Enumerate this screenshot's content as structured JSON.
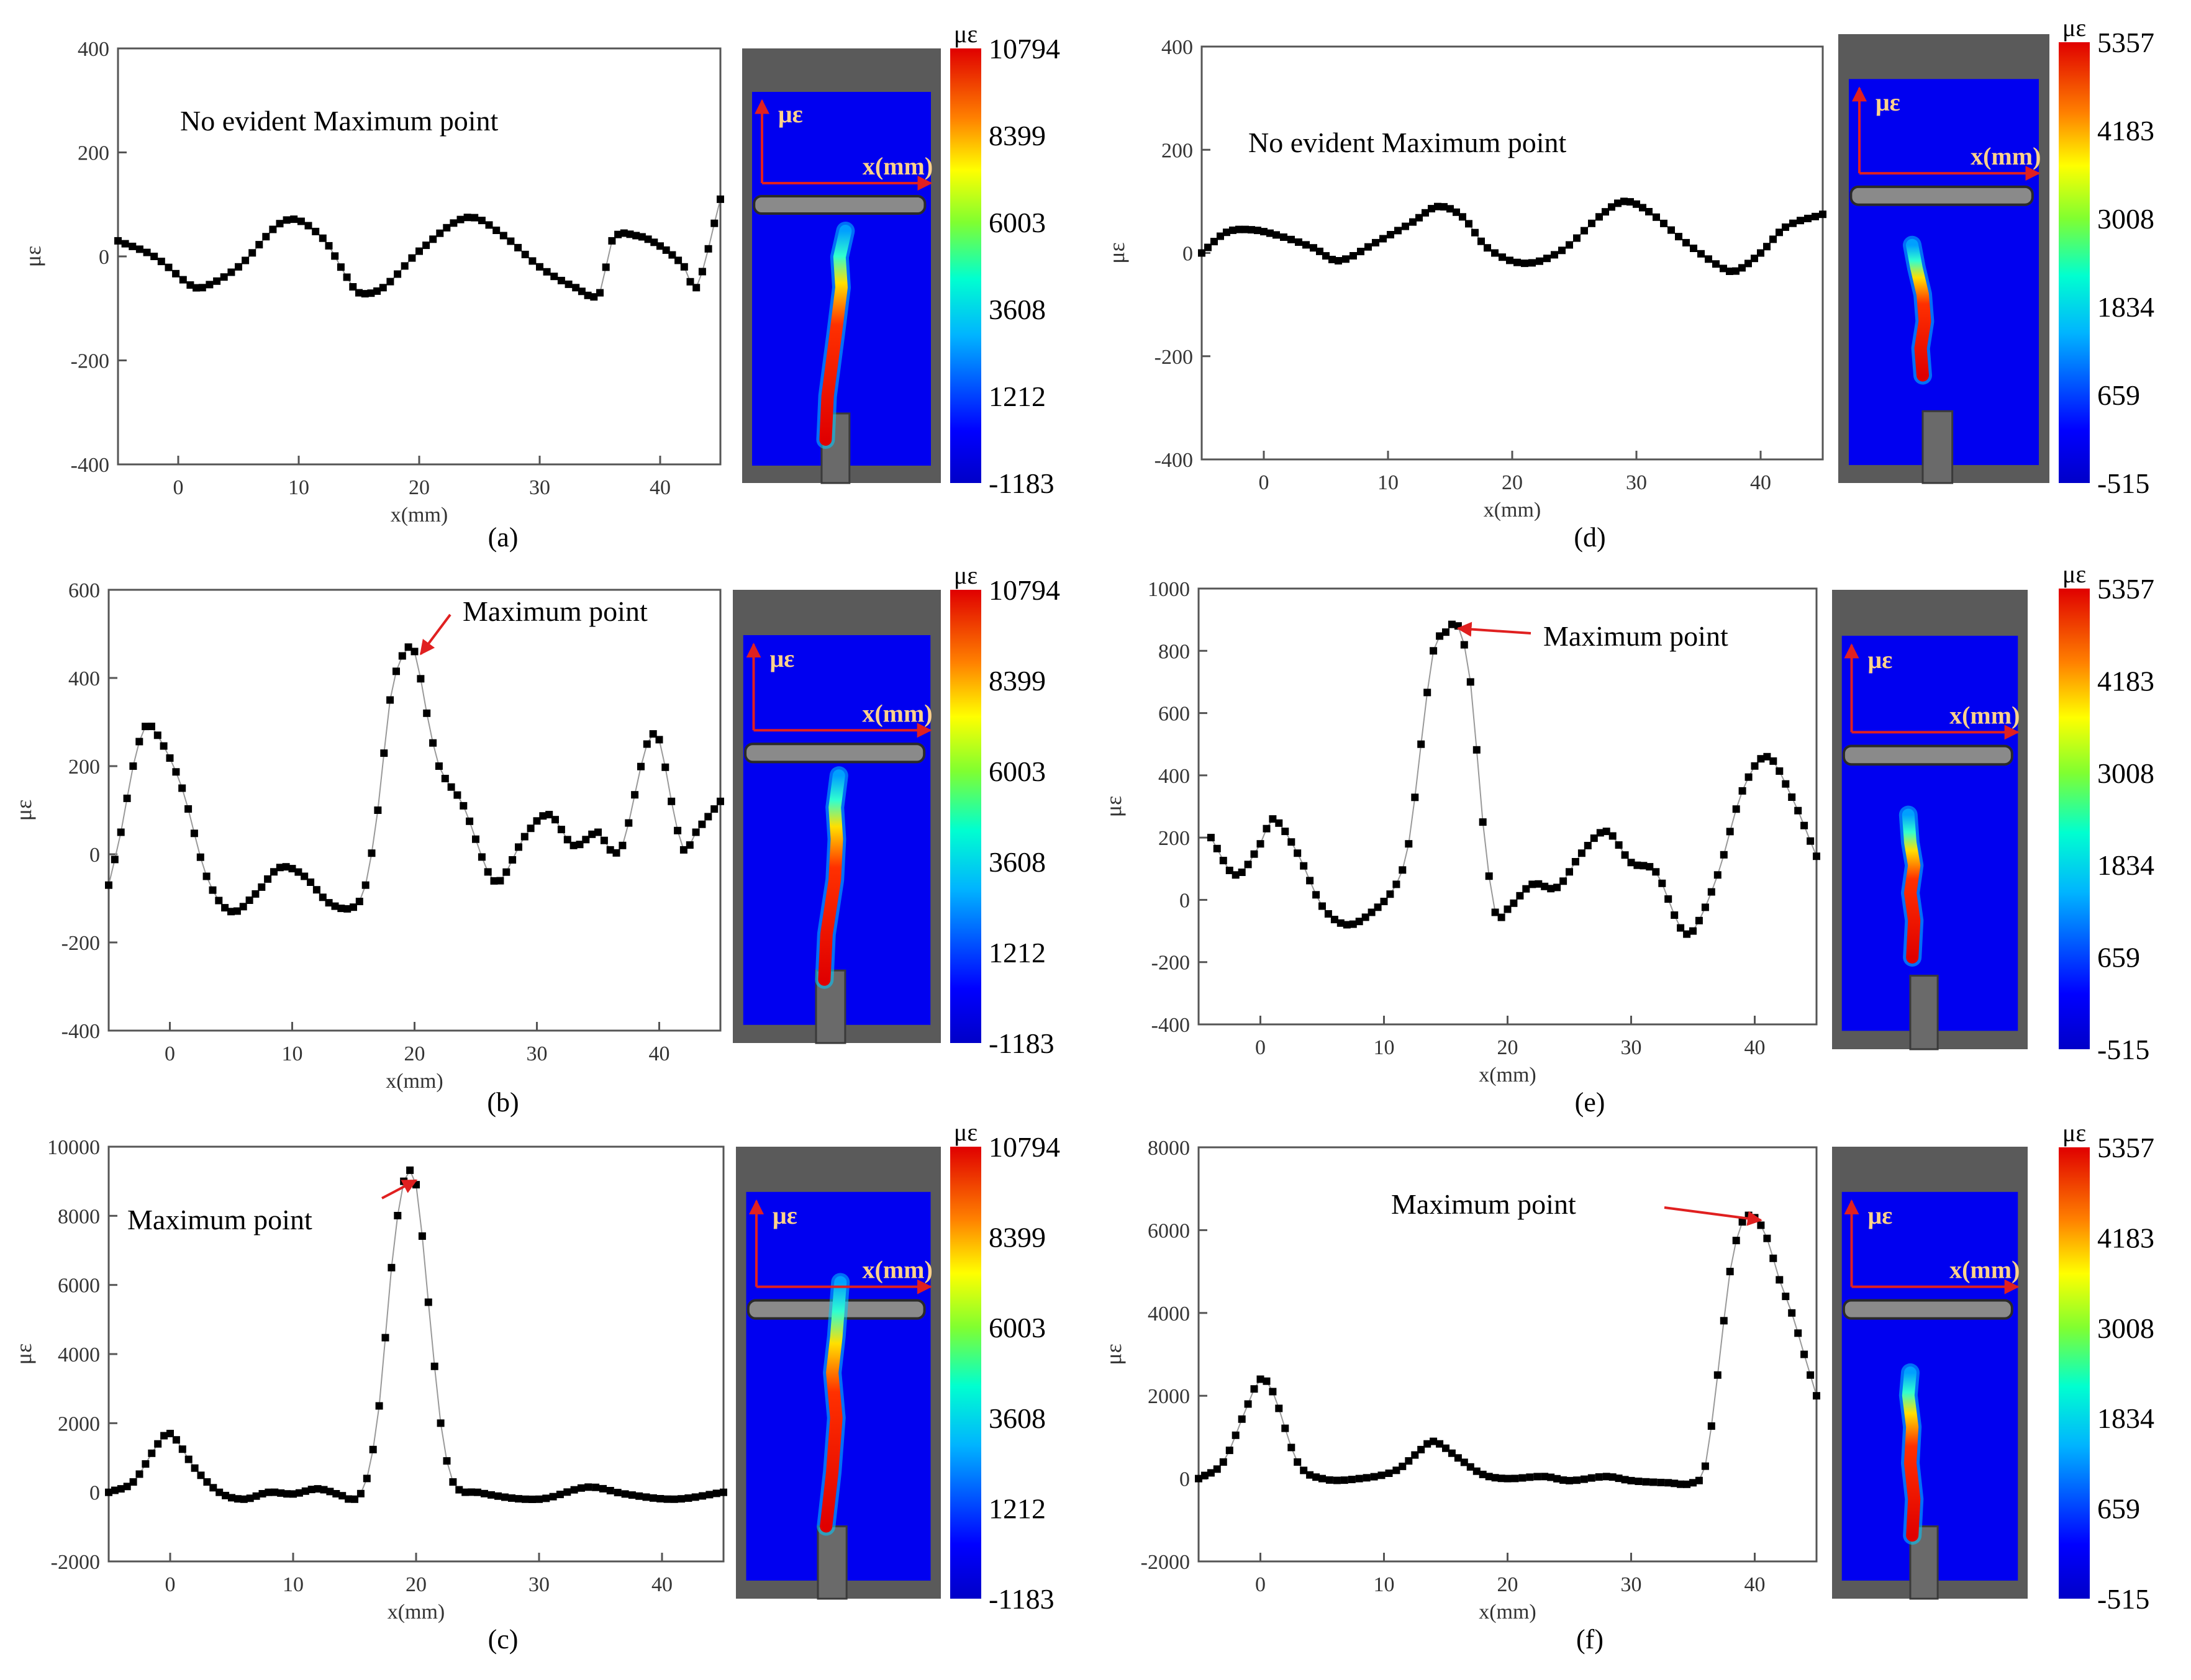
{
  "figure": {
    "panels": [
      {
        "id": "a",
        "label": "(a)",
        "annotation": "No evident Maximum point",
        "annotation_has_arrow": false,
        "colorbar_key": "left",
        "image_key": "a"
      },
      {
        "id": "b",
        "label": "(b)",
        "annotation": "Maximum point",
        "annotation_has_arrow": true,
        "colorbar_key": "left",
        "image_key": "b"
      },
      {
        "id": "c",
        "label": "(c)",
        "annotation": "Maximum point",
        "annotation_has_arrow": true,
        "colorbar_key": "left",
        "image_key": "c"
      },
      {
        "id": "d",
        "label": "(d)",
        "annotation": "No evident Maximum point",
        "annotation_has_arrow": false,
        "colorbar_key": "right",
        "image_key": "d"
      },
      {
        "id": "e",
        "label": "(e)",
        "annotation": "Maximum point",
        "annotation_has_arrow": true,
        "colorbar_key": "right",
        "image_key": "e"
      },
      {
        "id": "f",
        "label": "(f)",
        "annotation": "Maximum point",
        "annotation_has_arrow": true,
        "colorbar_key": "right",
        "image_key": "f"
      }
    ],
    "colorbars": {
      "left": {
        "unit": "με",
        "ticks": [
          "10794",
          "8399",
          "6003",
          "3608",
          "1212",
          "-1183"
        ]
      },
      "right": {
        "unit": "με",
        "ticks": [
          "5357",
          "4183",
          "3008",
          "1834",
          "659",
          "-515"
        ]
      }
    },
    "strain_images": {
      "axis_y_label": "με",
      "axis_x_label": "x(mm)",
      "a": {
        "crack": [
          [
            0.42,
            0.9
          ],
          [
            0.43,
            0.8
          ],
          [
            0.47,
            0.66
          ],
          [
            0.5,
            0.55
          ],
          [
            0.49,
            0.48
          ],
          [
            0.52,
            0.42
          ]
        ],
        "hot_fraction": 0.55
      },
      "b": {
        "crack": [
          [
            0.44,
            0.86
          ],
          [
            0.45,
            0.76
          ],
          [
            0.49,
            0.64
          ],
          [
            0.5,
            0.55
          ],
          [
            0.49,
            0.48
          ],
          [
            0.51,
            0.41
          ]
        ],
        "hot_fraction": 0.75
      },
      "c": {
        "crack": [
          [
            0.44,
            0.84
          ],
          [
            0.47,
            0.72
          ],
          [
            0.49,
            0.6
          ],
          [
            0.47,
            0.5
          ],
          [
            0.49,
            0.42
          ],
          [
            0.51,
            0.3
          ]
        ],
        "hot_fraction": 0.85
      },
      "d": {
        "crack": [
          [
            0.4,
            0.76
          ],
          [
            0.39,
            0.7
          ],
          [
            0.41,
            0.64
          ],
          [
            0.4,
            0.58
          ],
          [
            0.37,
            0.52
          ],
          [
            0.35,
            0.47
          ]
        ],
        "hot_fraction": 0.6
      },
      "e": {
        "crack": [
          [
            0.41,
            0.8
          ],
          [
            0.42,
            0.72
          ],
          [
            0.4,
            0.66
          ],
          [
            0.42,
            0.6
          ],
          [
            0.4,
            0.55
          ],
          [
            0.39,
            0.49
          ]
        ],
        "hot_fraction": 0.8
      },
      "f": {
        "crack": [
          [
            0.41,
            0.86
          ],
          [
            0.42,
            0.78
          ],
          [
            0.4,
            0.7
          ],
          [
            0.41,
            0.62
          ],
          [
            0.39,
            0.55
          ],
          [
            0.4,
            0.5
          ]
        ],
        "hot_fraction": 0.9
      }
    }
  },
  "chart_data": [
    {
      "panel": "a",
      "type": "scatter",
      "title": "",
      "xlabel": "x(mm)",
      "ylabel": "με",
      "xlim": [
        -5,
        45
      ],
      "ylim": [
        -400,
        400
      ],
      "xticks": [
        0,
        10,
        20,
        30,
        40
      ],
      "yticks": [
        -400,
        -200,
        0,
        200,
        400
      ],
      "x": [
        -5,
        -2,
        1,
        2,
        5,
        9,
        12,
        14,
        15,
        17,
        20,
        24,
        27,
        30,
        33,
        35,
        36,
        38,
        40,
        42,
        43,
        45
      ],
      "y": [
        30,
        0,
        -55,
        -60,
        -20,
        70,
        35,
        -40,
        -70,
        -60,
        10,
        75,
        40,
        -20,
        -60,
        -70,
        30,
        40,
        20,
        -20,
        -60,
        110
      ],
      "maximum_point": null
    },
    {
      "panel": "b",
      "type": "scatter",
      "title": "",
      "xlabel": "x(mm)",
      "ylabel": "με",
      "xlim": [
        -5,
        45
      ],
      "ylim": [
        -400,
        600
      ],
      "xticks": [
        0,
        10,
        20,
        30,
        40
      ],
      "yticks": [
        -400,
        -200,
        0,
        200,
        400,
        600
      ],
      "x": [
        -5,
        -4,
        -3,
        -2,
        -1,
        1,
        3,
        5,
        7,
        9,
        11,
        13,
        15,
        16,
        17,
        18,
        19,
        20,
        21,
        22,
        24,
        26,
        27,
        29,
        31,
        33,
        35,
        36,
        37,
        39,
        40,
        41,
        42,
        43,
        45
      ],
      "y": [
        -70,
        50,
        200,
        290,
        270,
        150,
        -50,
        -130,
        -90,
        -30,
        -50,
        -110,
        -120,
        -70,
        100,
        350,
        450,
        460,
        320,
        200,
        110,
        -40,
        -60,
        40,
        90,
        20,
        50,
        10,
        20,
        250,
        260,
        120,
        10,
        50,
        120
      ],
      "maximum_point": {
        "x": 20,
        "y": 460
      }
    },
    {
      "panel": "c",
      "type": "scatter",
      "title": "",
      "xlabel": "x(mm)",
      "ylabel": "με",
      "xlim": [
        -5,
        45
      ],
      "ylim": [
        -2000,
        10000
      ],
      "xticks": [
        0,
        10,
        20,
        30,
        40
      ],
      "yticks": [
        -2000,
        0,
        2000,
        4000,
        6000,
        8000,
        10000
      ],
      "x": [
        -5,
        -3,
        -1,
        0,
        2,
        4,
        6,
        8,
        10,
        12,
        14,
        15,
        16,
        17,
        18,
        19,
        20,
        21,
        22,
        23,
        25,
        30,
        34,
        37,
        41,
        45
      ],
      "y": [
        0,
        300,
        1400,
        1700,
        700,
        0,
        -200,
        0,
        -50,
        100,
        -100,
        -200,
        400,
        2500,
        6500,
        9000,
        8900,
        5500,
        2000,
        300,
        0,
        -200,
        150,
        -50,
        -200,
        0
      ],
      "maximum_point": {
        "x": 19.5,
        "y": 9100
      }
    },
    {
      "panel": "d",
      "type": "scatter",
      "title": "",
      "xlabel": "x(mm)",
      "ylabel": "με",
      "xlim": [
        -5,
        45
      ],
      "ylim": [
        -400,
        400
      ],
      "xticks": [
        0,
        10,
        20,
        30,
        40
      ],
      "yticks": [
        -400,
        -200,
        0,
        200,
        400
      ],
      "x": [
        -5,
        -3,
        -1,
        1,
        4,
        6,
        9,
        12,
        14,
        16,
        18,
        21,
        24,
        27,
        29,
        31,
        34,
        37,
        38,
        40,
        42,
        45
      ],
      "y": [
        0,
        40,
        45,
        35,
        10,
        -15,
        20,
        60,
        90,
        70,
        10,
        -20,
        5,
        70,
        100,
        80,
        20,
        -30,
        -35,
        0,
        50,
        75
      ],
      "maximum_point": null
    },
    {
      "panel": "e",
      "type": "scatter",
      "title": "",
      "xlabel": "x(mm)",
      "ylabel": "με",
      "xlim": [
        -5,
        45
      ],
      "ylim": [
        -400,
        1000
      ],
      "xticks": [
        0,
        10,
        20,
        30,
        40
      ],
      "yticks": [
        -400,
        -200,
        0,
        200,
        400,
        600,
        800,
        1000
      ],
      "x": [
        -4,
        -2,
        0,
        1,
        3,
        5,
        7,
        9,
        11,
        12,
        13,
        14,
        15,
        16,
        17,
        18,
        19,
        20,
        22,
        24,
        26,
        28,
        30,
        32,
        34,
        35,
        37,
        39,
        41,
        43,
        45
      ],
      "y": [
        200,
        80,
        180,
        260,
        150,
        -20,
        -80,
        -40,
        50,
        180,
        500,
        800,
        860,
        880,
        700,
        250,
        -40,
        -30,
        50,
        40,
        150,
        220,
        120,
        90,
        -90,
        -100,
        80,
        350,
        460,
        330,
        140
      ],
      "maximum_point": {
        "x": 15.5,
        "y": 880
      }
    },
    {
      "panel": "f",
      "type": "scatter",
      "title": "",
      "xlabel": "x(mm)",
      "ylabel": "με",
      "xlim": [
        -5,
        45
      ],
      "ylim": [
        -2000,
        8000
      ],
      "xticks": [
        0,
        10,
        20,
        30,
        40
      ],
      "yticks": [
        -2000,
        0,
        2000,
        4000,
        6000,
        8000
      ],
      "x": [
        -5,
        -3,
        -1,
        0,
        1,
        3,
        5,
        8,
        11,
        13,
        14,
        16,
        18,
        20,
        23,
        25,
        28,
        30,
        33,
        35,
        36,
        37,
        38,
        39,
        40,
        41,
        42,
        43,
        44,
        45
      ],
      "y": [
        0,
        400,
        1800,
        2400,
        2100,
        400,
        0,
        0,
        200,
        700,
        900,
        500,
        100,
        0,
        50,
        -50,
        50,
        -50,
        -100,
        -100,
        300,
        2500,
        5000,
        6200,
        6300,
        5800,
        4800,
        4000,
        3000,
        2000
      ],
      "maximum_point": {
        "x": 40,
        "y": 6300
      }
    }
  ]
}
